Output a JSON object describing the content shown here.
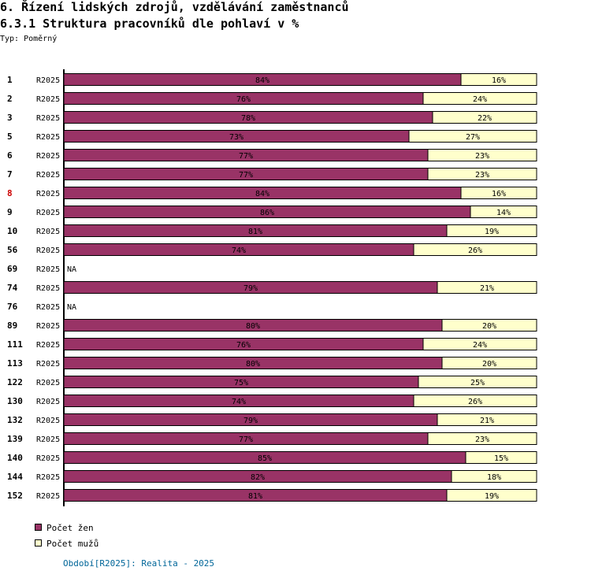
{
  "header": {
    "title": "6. Řízení lidských zdrojů, vzdělávání zaměstnanců",
    "subtitle": "6.3.1 Struktura pracovníků dle pohlaví v %",
    "type_line": "Typ: Poměrný"
  },
  "colors": {
    "women": "#993366",
    "men": "#ffffcc",
    "highlight_label": "#cc0000",
    "period_text": "#006699"
  },
  "legend": {
    "women": "Počet žen",
    "men": "Počet mužů"
  },
  "footer": {
    "period": "Období[R2025]: Realita - 2025"
  },
  "chart_data": {
    "type": "bar",
    "orientation": "horizontal",
    "stacked": true,
    "normalized_percent": true,
    "title": "6.3.1 Struktura pracovníků dle pohlaví v %",
    "xlim": [
      0,
      100
    ],
    "series_names": [
      "Počet žen",
      "Počet mužů"
    ],
    "rows": [
      {
        "label": "1",
        "period": "R2025",
        "women": 84,
        "men": 16
      },
      {
        "label": "2",
        "period": "R2025",
        "women": 76,
        "men": 24
      },
      {
        "label": "3",
        "period": "R2025",
        "women": 78,
        "men": 22
      },
      {
        "label": "5",
        "period": "R2025",
        "women": 73,
        "men": 27
      },
      {
        "label": "6",
        "period": "R2025",
        "women": 77,
        "men": 23
      },
      {
        "label": "7",
        "period": "R2025",
        "women": 77,
        "men": 23
      },
      {
        "label": "8",
        "period": "R2025",
        "women": 84,
        "men": 16,
        "highlight": true
      },
      {
        "label": "9",
        "period": "R2025",
        "women": 86,
        "men": 14
      },
      {
        "label": "10",
        "period": "R2025",
        "women": 81,
        "men": 19
      },
      {
        "label": "56",
        "period": "R2025",
        "women": 74,
        "men": 26
      },
      {
        "label": "69",
        "period": "R2025",
        "women": null,
        "men": null,
        "na_text": "NA"
      },
      {
        "label": "74",
        "period": "R2025",
        "women": 79,
        "men": 21
      },
      {
        "label": "76",
        "period": "R2025",
        "women": null,
        "men": null,
        "na_text": "NA"
      },
      {
        "label": "89",
        "period": "R2025",
        "women": 80,
        "men": 20
      },
      {
        "label": "111",
        "period": "R2025",
        "women": 76,
        "men": 24
      },
      {
        "label": "113",
        "period": "R2025",
        "women": 80,
        "men": 20
      },
      {
        "label": "122",
        "period": "R2025",
        "women": 75,
        "men": 25
      },
      {
        "label": "130",
        "period": "R2025",
        "women": 74,
        "men": 26
      },
      {
        "label": "132",
        "period": "R2025",
        "women": 79,
        "men": 21
      },
      {
        "label": "139",
        "period": "R2025",
        "women": 77,
        "men": 23
      },
      {
        "label": "140",
        "period": "R2025",
        "women": 85,
        "men": 15
      },
      {
        "label": "144",
        "period": "R2025",
        "women": 82,
        "men": 18
      },
      {
        "label": "152",
        "period": "R2025",
        "women": 81,
        "men": 19
      }
    ]
  }
}
